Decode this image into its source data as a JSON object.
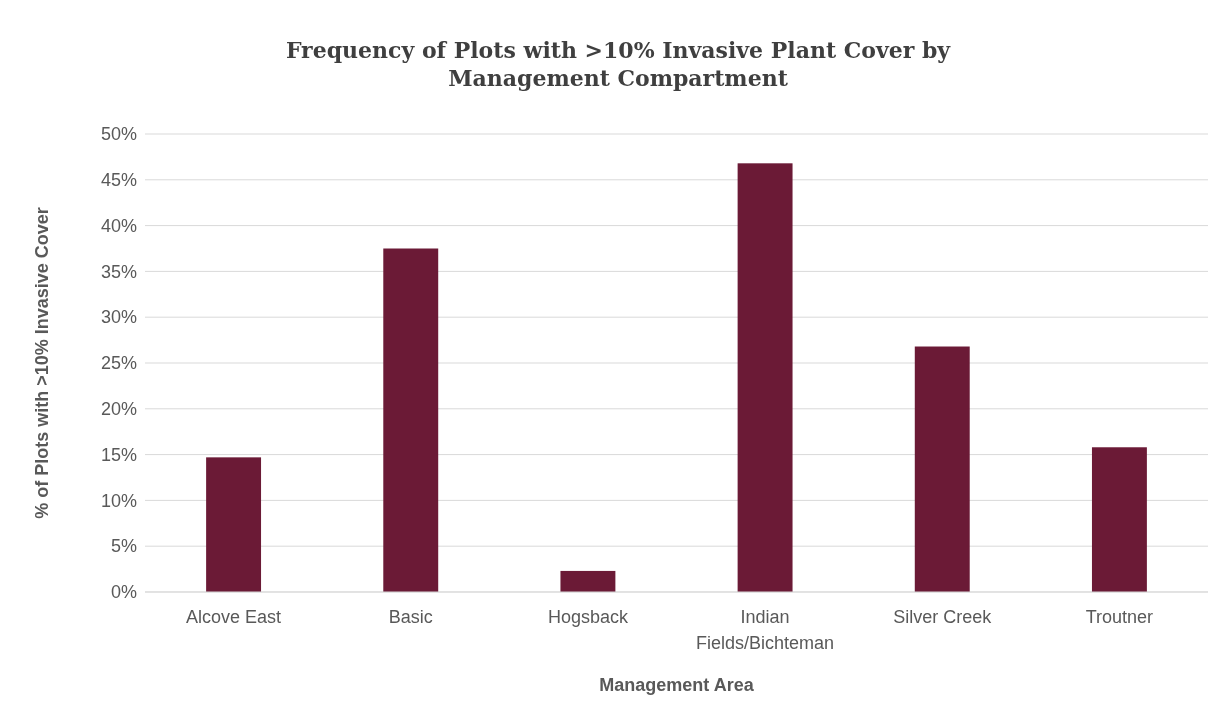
{
  "chart_data": {
    "type": "bar",
    "title": "Frequency of Plots with >10% Invasive Plant Cover by Management Compartment",
    "xlabel": "Management Area",
    "ylabel": "% of Plots with >10% Invasive Cover",
    "categories": [
      "Alcove East",
      "Basic",
      "Hogsback",
      "Indian Fields/Bichteman",
      "Silver Creek",
      "Troutner"
    ],
    "values": [
      14.7,
      37.5,
      2.3,
      46.8,
      26.8,
      15.8
    ],
    "color": "#6b1a36",
    "ylim": [
      0,
      50
    ],
    "yticks": [
      {
        "value": 0,
        "label": "0%"
      },
      {
        "value": 5,
        "label": "5%"
      },
      {
        "value": 10,
        "label": "10%"
      },
      {
        "value": 15,
        "label": "15%"
      },
      {
        "value": 20,
        "label": "20%"
      },
      {
        "value": 25,
        "label": "25%"
      },
      {
        "value": 30,
        "label": "30%"
      },
      {
        "value": 35,
        "label": "35%"
      },
      {
        "value": 40,
        "label": "40%"
      },
      {
        "value": 45,
        "label": "45%"
      },
      {
        "value": 50,
        "label": "50%"
      }
    ],
    "grid": "y"
  }
}
